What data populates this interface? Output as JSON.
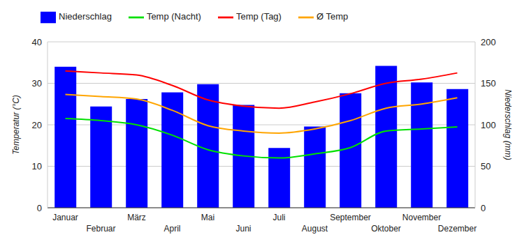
{
  "chart_data": {
    "type": "bar",
    "y_label": "Temperatur (°C)",
    "y2_label": "Niederschlag (mm)",
    "categories": [
      "Januar",
      "Februar",
      "März",
      "April",
      "Mai",
      "Juni",
      "Juli",
      "August",
      "September",
      "Oktober",
      "November",
      "Dezember"
    ],
    "series": [
      {
        "name": "Niederschlag",
        "type": "bar",
        "axis": "y2",
        "color": "#0000ff",
        "values": [
          170,
          122,
          131,
          139,
          149,
          124,
          72,
          98,
          138,
          171,
          151,
          143
        ]
      },
      {
        "name": "Temp (Tag)",
        "type": "line",
        "color": "#ff0000",
        "values": [
          33,
          32.5,
          32,
          29.5,
          26,
          24.5,
          24,
          25.5,
          27.5,
          30,
          31,
          32.5
        ]
      },
      {
        "name": "Ø Temp",
        "type": "line",
        "color": "#ffa500",
        "values": [
          27.3,
          26.8,
          26.2,
          23.5,
          19.8,
          18.5,
          18,
          19,
          21,
          24,
          25,
          26.5
        ]
      },
      {
        "name": "Temp (Nacht)",
        "type": "line",
        "color": "#00e000",
        "values": [
          21.5,
          21,
          20,
          17.5,
          14,
          12.5,
          12,
          13,
          14.5,
          18.5,
          19,
          19.5
        ]
      }
    ],
    "ylim": [
      0,
      40
    ],
    "yticks": [
      0,
      10,
      20,
      30,
      40
    ],
    "y2lim": [
      0,
      200
    ],
    "y2ticks": [
      0,
      50,
      100,
      150,
      200
    ],
    "grid": true,
    "legend": "top-left"
  }
}
